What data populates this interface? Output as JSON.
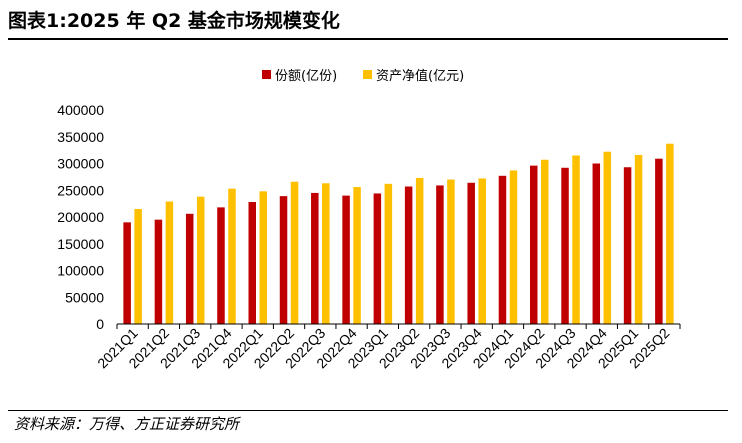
{
  "title": "图表1:2025 年 Q2 基金市场规模变化",
  "source": "资料来源：万得、方正证券研究所",
  "colors": {
    "series_0": "#C00000",
    "series_1": "#FFC000"
  },
  "chart_data": {
    "type": "bar",
    "title": "图表1:2025 年 Q2 基金市场规模变化",
    "xlabel": "",
    "ylabel": "",
    "legend_position": "top-center",
    "grid": false,
    "ylim": [
      0,
      400000
    ],
    "yticks": [
      "0",
      "50000",
      "100000",
      "150000",
      "200000",
      "250000",
      "300000",
      "350000",
      "400000"
    ],
    "categories": [
      "2021Q1",
      "2021Q2",
      "2021Q3",
      "2021Q4",
      "2022Q1",
      "2022Q2",
      "2022Q3",
      "2022Q4",
      "2023Q1",
      "2023Q2",
      "2023Q3",
      "2023Q4",
      "2024Q1",
      "2024Q2",
      "2024Q3",
      "2024Q4",
      "2025Q1",
      "2025Q2"
    ],
    "series": [
      {
        "name": "份额(亿份)",
        "values": [
          190000,
          195000,
          206000,
          218000,
          228000,
          239000,
          245000,
          240000,
          244000,
          257000,
          259000,
          264000,
          277000,
          296000,
          292000,
          300000,
          293000,
          309000
        ]
      },
      {
        "name": "资产净值(亿元)",
        "values": [
          215000,
          229000,
          238000,
          253000,
          248000,
          266000,
          263000,
          256000,
          262000,
          273000,
          270000,
          272000,
          287000,
          307000,
          315000,
          322000,
          316000,
          337000
        ]
      }
    ]
  }
}
